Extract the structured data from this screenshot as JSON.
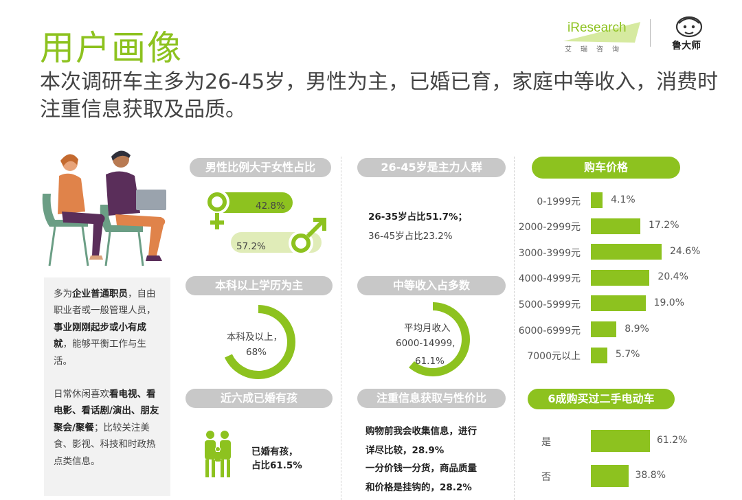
{
  "header": {
    "title": "用户画像",
    "subtitle": "本次调研车主多为26-45岁，男性为主，已婚已育，家庭中等收入，消费时注重信息获取及品质。"
  },
  "logos": {
    "iresearch": "iResearch",
    "iresearch_sub": "艾瑞咨询",
    "ludashi": "鲁大师"
  },
  "description": {
    "p1": [
      {
        "t": "多为",
        "b": false
      },
      {
        "t": "企业普通职员",
        "b": true
      },
      {
        "t": "，自由职业者或一般管理人员，",
        "b": false
      },
      {
        "t": "事业刚刚起步或小有成就",
        "b": true
      },
      {
        "t": "，能够平衡工作与生活。",
        "b": false
      }
    ],
    "p2": [
      {
        "t": "日常休闲喜欢",
        "b": false
      },
      {
        "t": "看电视、看电影、看话剧/演出、朋友聚会/聚餐",
        "b": true
      },
      {
        "t": "；比较关注美食、影视、科技和时政热点类信息。",
        "b": false
      }
    ]
  },
  "panels": {
    "gender": {
      "heading": "男性比例大于女性占比",
      "female_label": "42.8%",
      "male_label": "57.2%"
    },
    "age": {
      "heading": "26-45岁是主力人群",
      "line1": "26-35岁占比51.7%；",
      "line2": "36-45岁占比23.2%"
    },
    "education": {
      "heading": "本科以上学历为主",
      "line1": "本科及以上，",
      "line2": "68%"
    },
    "income": {
      "heading": "中等收入占多数",
      "line1": "平均月收入",
      "line2": "6000-14999,",
      "line3": "61.1%"
    },
    "married": {
      "heading": "近六成已婚有孩",
      "line1": "已婚有孩，",
      "line2": "占比61.5%"
    },
    "info": {
      "heading": "注重信息获取与性价比",
      "line1": "购物前我会收集信息，进行",
      "line2": "详尽比较，28.9%",
      "line3": "一分价钱一分货，商品质量",
      "line4": "和价格是挂钩的，28.2%"
    },
    "price": {
      "heading": "购车价格"
    },
    "secondhand": {
      "heading": "6成购买过二手电动车"
    }
  },
  "chart_data": [
    {
      "type": "bar",
      "title": "购车价格",
      "orientation": "horizontal",
      "categories": [
        "0-1999元",
        "2000-2999元",
        "3000-3999元",
        "4000-4999元",
        "5000-5999元",
        "6000-6999元",
        "7000元以上"
      ],
      "values": [
        4.1,
        17.2,
        24.6,
        20.4,
        19.0,
        8.9,
        5.7
      ],
      "value_labels": [
        "4.1%",
        "17.2%",
        "24.6%",
        "20.4%",
        "19.0%",
        "8.9%",
        "5.7%"
      ],
      "color": "#8dc21f"
    },
    {
      "type": "bar",
      "title": "6成购买过二手电动车",
      "orientation": "horizontal",
      "categories": [
        "是",
        "否"
      ],
      "values": [
        61.2,
        38.8
      ],
      "value_labels": [
        "61.2%",
        "38.8%"
      ],
      "color": "#8dc21f"
    },
    {
      "type": "pie",
      "title": "男性比例大于女性占比",
      "categories": [
        "女性",
        "男性"
      ],
      "values": [
        42.8,
        57.2
      ],
      "value_labels": [
        "42.8%",
        "57.2%"
      ]
    },
    {
      "type": "pie",
      "title": "本科以上学历为主",
      "categories": [
        "本科及以上"
      ],
      "values": [
        68
      ],
      "value_labels": [
        "68%"
      ]
    },
    {
      "type": "pie",
      "title": "中等收入占多数",
      "categories": [
        "6000-14999"
      ],
      "values": [
        61.1
      ],
      "value_labels": [
        "61.1%"
      ]
    }
  ],
  "colors": {
    "accent": "#8dc21f",
    "light_accent": "#e0ecb8",
    "pill_gray": "#c8c8c8",
    "text": "#444444"
  }
}
